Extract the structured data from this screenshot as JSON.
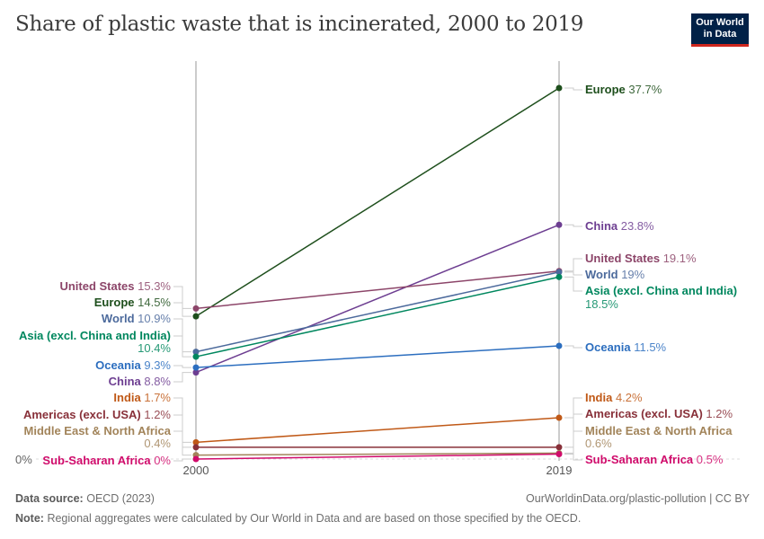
{
  "title": "Share of plastic waste that is incinerated, 2000 to 2019",
  "logo": {
    "line1": "Our World",
    "line2": "in Data"
  },
  "footer": {
    "source_label": "Data source:",
    "source": "OECD (2023)",
    "url": "OurWorldinData.org/plastic-pollution | CC BY",
    "note_label": "Note:",
    "note": "Regional aggregates were calculated by Our World in Data and are based on those specified by the OECD."
  },
  "chart_data": {
    "type": "line",
    "subtype": "slope",
    "x": [
      "2000",
      "2019"
    ],
    "y_unit": "%",
    "ylim": [
      0,
      37.7
    ],
    "y_ticks": [
      "0%"
    ],
    "series": [
      {
        "name": "Europe",
        "values": [
          14.5,
          37.7
        ],
        "color": "#1e4f1c"
      },
      {
        "name": "China",
        "values": [
          8.8,
          23.8
        ],
        "color": "#6d3e91"
      },
      {
        "name": "United States",
        "values": [
          15.3,
          19.1
        ],
        "color": "#8c4569"
      },
      {
        "name": "World",
        "values": [
          10.9,
          19
        ],
        "color": "#4c6a9c"
      },
      {
        "name": "Asia (excl. China and India)",
        "values": [
          10.4,
          18.5
        ],
        "color": "#00875e"
      },
      {
        "name": "Oceania",
        "values": [
          9.3,
          11.5
        ],
        "color": "#2c6ebf"
      },
      {
        "name": "India",
        "values": [
          1.7,
          4.2
        ],
        "color": "#c05917"
      },
      {
        "name": "Americas (excl. USA)",
        "values": [
          1.2,
          1.2
        ],
        "color": "#883039"
      },
      {
        "name": "Middle East & North Africa",
        "values": [
          0.4,
          0.6
        ],
        "color": "#a2845a"
      },
      {
        "name": "Sub-Saharan Africa",
        "values": [
          0,
          0.5
        ],
        "color": "#d00b6b"
      }
    ]
  }
}
